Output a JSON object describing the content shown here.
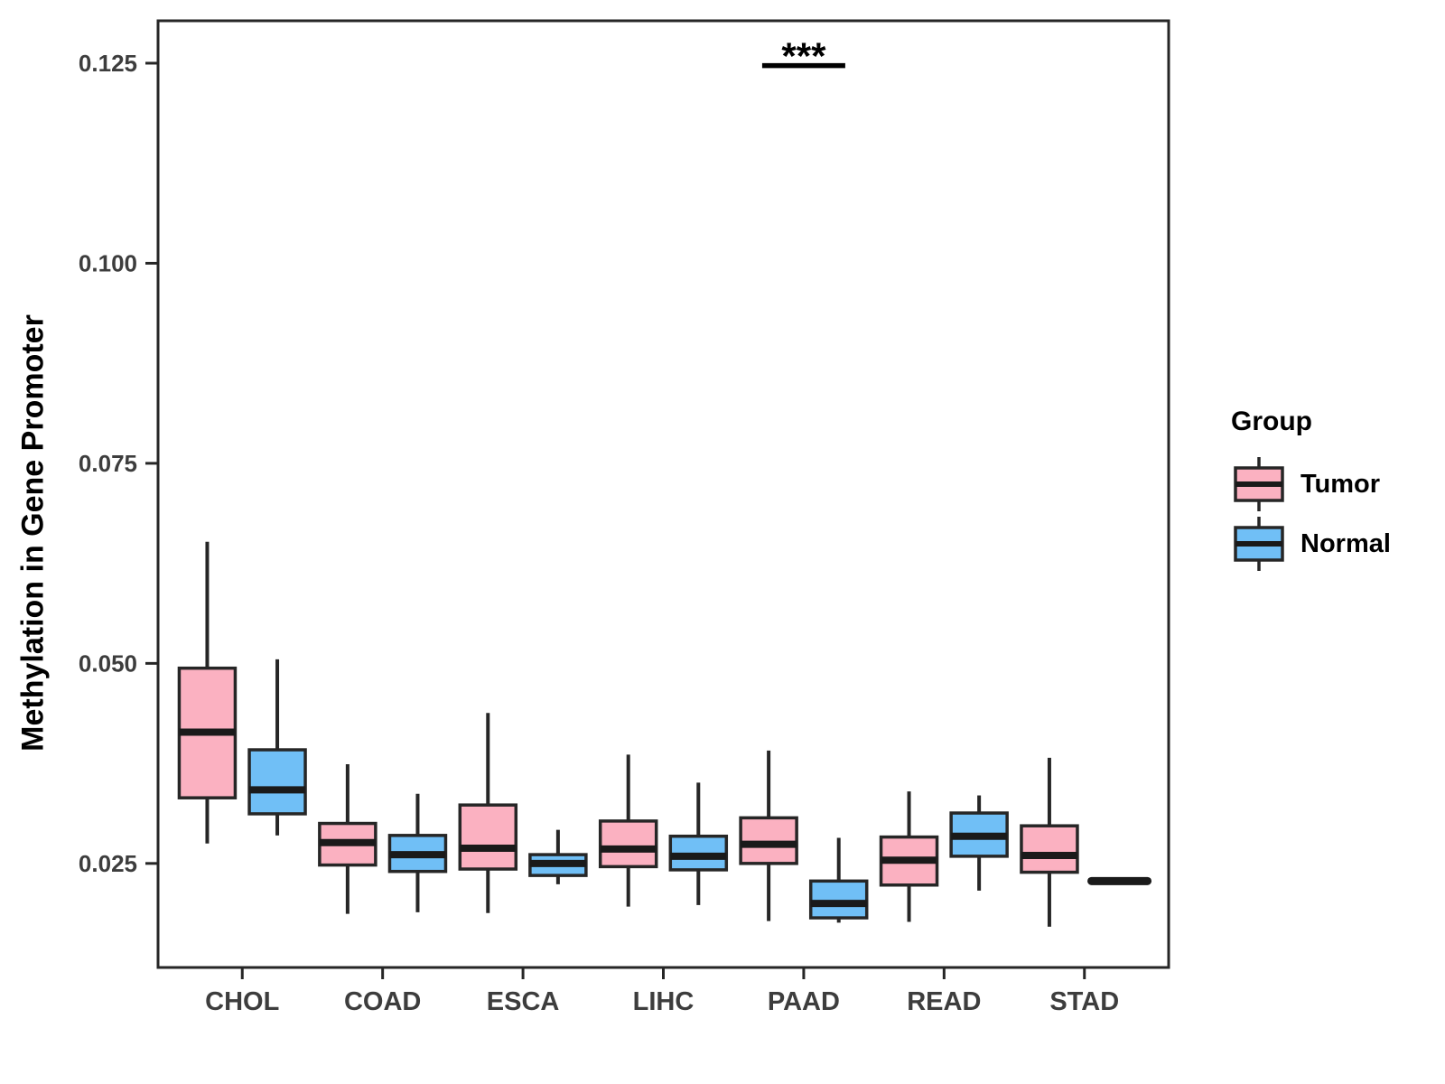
{
  "figure": {
    "background": "#FFFFFF"
  },
  "chart_data": {
    "type": "boxplot",
    "title": "",
    "xlabel": "",
    "ylabel": "Methylation in Gene Promoter",
    "categories": [
      "CHOL",
      "COAD",
      "ESCA",
      "LIHC",
      "PAAD",
      "READ",
      "STAD"
    ],
    "y_ticks": [
      "0.025",
      "0.050",
      "0.075",
      "0.100",
      "0.125"
    ],
    "y_tick_values": [
      0.025,
      0.05,
      0.075,
      0.1,
      0.125
    ],
    "ylim": [
      0.012,
      0.1303
    ],
    "grid": "off",
    "legend_position": "right",
    "legend": {
      "title": "Group",
      "items": [
        {
          "label": "Tumor",
          "color": "#FBB1C1"
        },
        {
          "label": "Normal",
          "color": "#70BFF6"
        }
      ]
    },
    "series": [
      {
        "name": "Tumor",
        "color": "#FBB1C1",
        "boxes": [
          {
            "category": "CHOL",
            "whisker_low": 0.0275,
            "q1": 0.0332,
            "median": 0.0414,
            "q3": 0.0494,
            "whisker_high": 0.0652
          },
          {
            "category": "COAD",
            "whisker_low": 0.0187,
            "q1": 0.0248,
            "median": 0.0276,
            "q3": 0.03,
            "whisker_high": 0.0374
          },
          {
            "category": "ESCA",
            "whisker_low": 0.0188,
            "q1": 0.0243,
            "median": 0.0269,
            "q3": 0.0323,
            "whisker_high": 0.0438
          },
          {
            "category": "LIHC",
            "whisker_low": 0.0196,
            "q1": 0.0246,
            "median": 0.0268,
            "q3": 0.0303,
            "whisker_high": 0.0386
          },
          {
            "category": "PAAD",
            "whisker_low": 0.0178,
            "q1": 0.025,
            "median": 0.0274,
            "q3": 0.0307,
            "whisker_high": 0.0391
          },
          {
            "category": "READ",
            "whisker_low": 0.0177,
            "q1": 0.0223,
            "median": 0.0254,
            "q3": 0.0283,
            "whisker_high": 0.034
          },
          {
            "category": "STAD",
            "whisker_low": 0.0171,
            "q1": 0.0239,
            "median": 0.026,
            "q3": 0.0297,
            "whisker_high": 0.0382
          }
        ]
      },
      {
        "name": "Normal",
        "color": "#70BFF6",
        "boxes": [
          {
            "category": "CHOL",
            "whisker_low": 0.0285,
            "q1": 0.0312,
            "median": 0.0342,
            "q3": 0.0392,
            "whisker_high": 0.0505
          },
          {
            "category": "COAD",
            "whisker_low": 0.0189,
            "q1": 0.024,
            "median": 0.0261,
            "q3": 0.0285,
            "whisker_high": 0.0337
          },
          {
            "category": "ESCA",
            "whisker_low": 0.0224,
            "q1": 0.0235,
            "median": 0.025,
            "q3": 0.0261,
            "whisker_high": 0.0292
          },
          {
            "category": "LIHC",
            "whisker_low": 0.0198,
            "q1": 0.0242,
            "median": 0.0259,
            "q3": 0.0284,
            "whisker_high": 0.0351
          },
          {
            "category": "PAAD",
            "whisker_low": 0.0176,
            "q1": 0.0182,
            "median": 0.02,
            "q3": 0.0228,
            "whisker_high": 0.0282
          },
          {
            "category": "READ",
            "whisker_low": 0.0216,
            "q1": 0.0259,
            "median": 0.0284,
            "q3": 0.0313,
            "whisker_high": 0.0335
          },
          {
            "category": "STAD",
            "whisker_low": 0.0228,
            "q1": 0.0228,
            "median": 0.0228,
            "q3": 0.0228,
            "whisker_high": 0.0228,
            "flat": true
          }
        ]
      }
    ],
    "annotation": {
      "label": "***",
      "category": "PAAD",
      "bar_y": 0.1247
    },
    "colors": {
      "box_border": "#262626",
      "median": "#1A1A1A",
      "axis": "#262626",
      "tick_label": "#3D3D3D",
      "text": "#000000"
    }
  }
}
